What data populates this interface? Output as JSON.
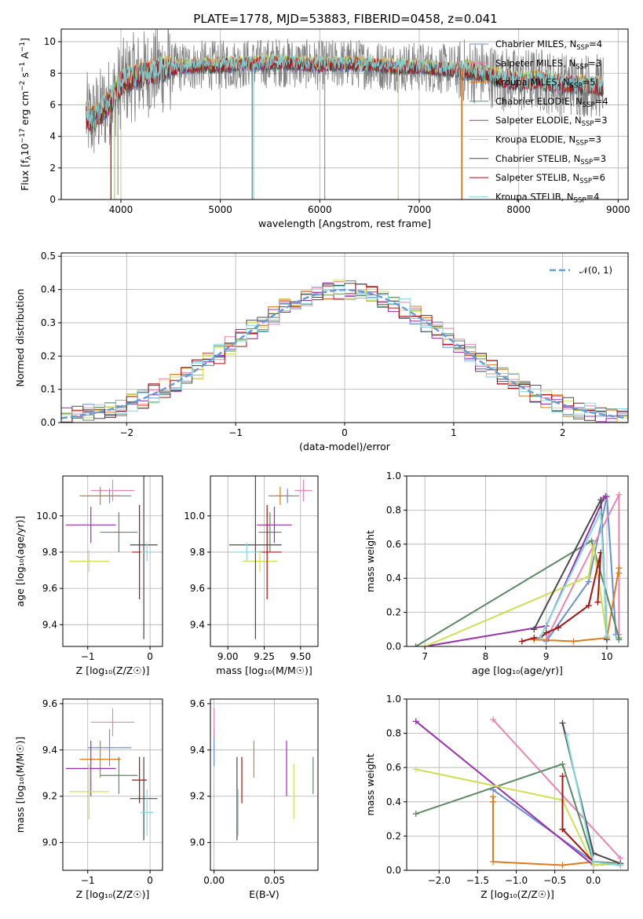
{
  "figure": {
    "title": "PLATE=1778, MJD=53883, FIBERID=0458, z=0.041"
  },
  "colors": {
    "observed_spectrum": "#808080",
    "gaussian": "#6699dd",
    "grid": "#b0b0b0"
  },
  "models": [
    {
      "id": "chabrier_miles",
      "label": "Chabrier MILES, N",
      "sub": "SSP",
      "eq": "=4",
      "color": "#6b8fd6"
    },
    {
      "id": "salpeter_miles",
      "label": "Salpeter MILES, N",
      "sub": "SSP",
      "eq": "=3",
      "color": "#e884b2"
    },
    {
      "id": "kroupa_miles",
      "label": "Kroupa MILES, N",
      "sub": "SSP",
      "eq": "=5",
      "color": "#e07a1f"
    },
    {
      "id": "chabrier_elodie",
      "label": "Chabrier ELODIE, N",
      "sub": "SSP",
      "eq": "=4",
      "color": "#5c8a64"
    },
    {
      "id": "salpeter_elodie",
      "label": "Salpeter ELODIE, N",
      "sub": "SSP",
      "eq": "=3",
      "color": "#9b2fb0"
    },
    {
      "id": "kroupa_elodie",
      "label": "Kroupa ELODIE, N",
      "sub": "SSP",
      "eq": "=3",
      "color": "#cfe04f"
    },
    {
      "id": "chabrier_stelib",
      "label": "Chabrier STELIB, N",
      "sub": "SSP",
      "eq": "=3",
      "color": "#4a4a4a"
    },
    {
      "id": "salpeter_stelib",
      "label": "Salpeter STELIB, N",
      "sub": "SSP",
      "eq": "=6",
      "color": "#aa1111"
    },
    {
      "id": "kroupa_stelib",
      "label": "Kroupa STELIB, N",
      "sub": "SSP",
      "eq": "=4",
      "color": "#7fdbe0"
    }
  ],
  "chart_data": [
    {
      "id": "spectrum",
      "type": "line",
      "xlabel": "wavelength [Angstrom, rest frame]",
      "ylabel_parts": [
        "Flux [f",
        "λ",
        "10",
        "−17",
        " erg cm",
        "−2",
        " s",
        "−1",
        " A",
        "−1",
        "]"
      ],
      "xlim": [
        3400,
        9100
      ],
      "ylim": [
        0,
        10.8
      ],
      "xticks": [
        4000,
        5000,
        6000,
        7000,
        8000,
        9000
      ],
      "yticks": [
        0,
        2,
        4,
        6,
        8,
        10
      ],
      "continuum": {
        "x": [
          3650,
          3700,
          3800,
          3900,
          3950,
          4000,
          4100,
          4200,
          4400,
          4600,
          4800,
          5000,
          5200,
          5400,
          5600,
          5800,
          6000,
          6200,
          6400,
          6600,
          6800,
          7000,
          7200,
          7400,
          7600,
          7800,
          8000,
          8200,
          8400,
          8600,
          8800
        ],
        "y": [
          5.3,
          5.0,
          5.6,
          6.3,
          6.8,
          7.3,
          7.7,
          7.9,
          8.2,
          8.4,
          8.5,
          8.5,
          8.6,
          8.6,
          8.7,
          8.6,
          8.5,
          8.6,
          8.6,
          8.5,
          8.4,
          8.4,
          8.3,
          8.2,
          8.1,
          7.7,
          7.5,
          7.6,
          7.3,
          7.3,
          7.2
        ]
      },
      "absorption_lines": [
        {
          "x": 3935,
          "min": 0
        },
        {
          "x": 3970,
          "min": 0.3
        },
        {
          "x": 3900,
          "min": 1.7
        },
        {
          "x": 5335,
          "min": 0
        },
        {
          "x": 6050,
          "min": 0
        },
        {
          "x": 6790,
          "min": 0
        },
        {
          "x": 7425,
          "min": 0
        }
      ]
    },
    {
      "id": "residuals",
      "type": "area",
      "xlabel": "(data-model)/error",
      "ylabel": "Normed distribution",
      "xlim": [
        -2.6,
        2.6
      ],
      "ylim": [
        0,
        0.51
      ],
      "xticks": [
        -2,
        -1,
        0,
        1,
        2
      ],
      "yticks": [
        0.0,
        0.1,
        0.2,
        0.3,
        0.4,
        0.5
      ],
      "legend": {
        "label": "𝒩(0, 1)",
        "position": "top-right"
      },
      "bin_width": 0.1
    },
    {
      "id": "age_vs_Z",
      "type": "scatter",
      "xlabel": "Z [log₁₀(Z/Z☉)]",
      "ylabel": "age  [log₁₀(age/yr)]",
      "xlim": [
        -1.4,
        0.2
      ],
      "ylim": [
        9.28,
        10.22
      ],
      "xticks": [
        -1,
        0
      ],
      "yticks": [
        9.4,
        9.6,
        9.8,
        10.0
      ],
      "points": [
        {
          "model": "chabrier_miles",
          "x": -0.65,
          "xerr": 0.35,
          "y": 10.11,
          "yerr": 0.04
        },
        {
          "model": "salpeter_miles",
          "x": -0.6,
          "xerr": 0.35,
          "y": 10.14,
          "yerr": 0.06
        },
        {
          "model": "kroupa_miles",
          "x": -0.8,
          "xerr": 0.33,
          "y": 10.11,
          "yerr": 0.05
        },
        {
          "model": "chabrier_elodie",
          "x": -0.5,
          "xerr": 0.3,
          "y": 9.91,
          "yerr": 0.11
        },
        {
          "model": "salpeter_elodie",
          "x": -0.95,
          "xerr": 0.4,
          "y": 9.95,
          "yerr": 0.1
        },
        {
          "model": "kroupa_elodie",
          "x": -0.98,
          "xerr": 0.32,
          "y": 9.75,
          "yerr": 0.06
        },
        {
          "model": "chabrier_stelib",
          "x": -0.1,
          "xerr": 0.22,
          "y": 9.84,
          "yerr": 0.52
        },
        {
          "model": "salpeter_stelib",
          "x": -0.17,
          "xerr": 0.12,
          "y": 9.8,
          "yerr": 0.26
        },
        {
          "model": "kroupa_stelib",
          "x": -0.05,
          "xerr": 0.1,
          "y": 9.8,
          "yerr": 0.05
        }
      ]
    },
    {
      "id": "age_vs_mass",
      "type": "scatter",
      "xlabel": "mass [log₁₀(M/M☉)]",
      "ylabel": "",
      "xlim": [
        8.88,
        9.62
      ],
      "ylim": [
        9.28,
        10.22
      ],
      "xticks": [
        9.0,
        9.25,
        9.5
      ],
      "yticks": [
        9.4,
        9.6,
        9.8,
        10.0
      ],
      "points": [
        {
          "model": "chabrier_miles",
          "x": 9.41,
          "xerr": 0.08,
          "y": 10.11,
          "yerr": 0.04
        },
        {
          "model": "salpeter_miles",
          "x": 9.52,
          "xerr": 0.06,
          "y": 10.14,
          "yerr": 0.06
        },
        {
          "model": "kroupa_miles",
          "x": 9.36,
          "xerr": 0.08,
          "y": 10.11,
          "yerr": 0.05
        },
        {
          "model": "chabrier_elodie",
          "x": 9.29,
          "xerr": 0.08,
          "y": 9.91,
          "yerr": 0.11
        },
        {
          "model": "salpeter_elodie",
          "x": 9.32,
          "xerr": 0.12,
          "y": 9.95,
          "yerr": 0.1
        },
        {
          "model": "kroupa_elodie",
          "x": 9.22,
          "xerr": 0.12,
          "y": 9.75,
          "yerr": 0.06
        },
        {
          "model": "chabrier_stelib",
          "x": 9.19,
          "xerr": 0.18,
          "y": 9.84,
          "yerr": 0.52
        },
        {
          "model": "salpeter_stelib",
          "x": 9.27,
          "xerr": 0.1,
          "y": 9.8,
          "yerr": 0.26
        },
        {
          "model": "kroupa_stelib",
          "x": 9.13,
          "xerr": 0.1,
          "y": 9.8,
          "yerr": 0.05
        }
      ]
    },
    {
      "id": "massweight_vs_age",
      "type": "line",
      "xlabel": "age  [log₁₀(age/yr)]",
      "ylabel": "mass weight",
      "xlim": [
        6.7,
        10.35
      ],
      "ylim": [
        0,
        1.0
      ],
      "xticks": [
        7,
        8,
        9,
        10
      ],
      "yticks": [
        0.0,
        0.2,
        0.4,
        0.6,
        0.8,
        1.0
      ],
      "series": [
        {
          "model": "chabrier_miles",
          "x": [
            9.0,
            9.7,
            10.0,
            10.15
          ],
          "y": [
            0.03,
            0.38,
            0.88,
            0.07
          ]
        },
        {
          "model": "salpeter_miles",
          "x": [
            9.0,
            10.2,
            10.2
          ],
          "y": [
            0.04,
            0.89,
            0.07
          ]
        },
        {
          "model": "kroupa_miles",
          "x": [
            8.8,
            9.45,
            10.0,
            10.2,
            10.2
          ],
          "y": [
            0.04,
            0.03,
            0.05,
            0.46,
            0.43
          ]
        },
        {
          "model": "chabrier_elodie",
          "x": [
            6.85,
            9.75,
            10.2,
            10.2
          ],
          "y": [
            0.0,
            0.62,
            0.05,
            0.04
          ]
        },
        {
          "model": "salpeter_elodie",
          "x": [
            7.0,
            9.0,
            9.95,
            9.98
          ],
          "y": [
            0.0,
            0.12,
            0.87,
            0.88
          ]
        },
        {
          "model": "kroupa_elodie",
          "x": [
            7.0,
            9.7,
            9.78,
            10.0
          ],
          "y": [
            0.0,
            0.41,
            0.59,
            0.06
          ]
        },
        {
          "model": "chabrier_stelib",
          "x": [
            8.8,
            9.9,
            10.0
          ],
          "y": [
            0.1,
            0.86,
            0.04
          ]
        },
        {
          "model": "salpeter_stelib",
          "x": [
            8.6,
            8.8,
            8.9,
            9.0,
            9.2,
            9.7,
            9.9,
            9.85
          ],
          "y": [
            0.03,
            0.05,
            0.05,
            0.08,
            0.11,
            0.24,
            0.55,
            0.26
          ]
        },
        {
          "model": "kroupa_stelib",
          "x": [
            8.9,
            9.9,
            10.0
          ],
          "y": [
            0.05,
            0.79,
            0.06
          ]
        }
      ]
    },
    {
      "id": "mass_vs_Z",
      "type": "scatter",
      "xlabel": "Z [log₁₀(Z/Z☉)]",
      "ylabel": "mass [log₁₀(M/M☉)]",
      "xlim": [
        -1.4,
        0.2
      ],
      "ylim": [
        8.88,
        9.62
      ],
      "xticks": [
        -1,
        0
      ],
      "yticks": [
        9.0,
        9.2,
        9.4,
        9.6
      ],
      "points": [
        {
          "model": "chabrier_miles",
          "x": -0.65,
          "xerr": 0.35,
          "y": 9.41,
          "yerr": 0.08
        },
        {
          "model": "salpeter_miles",
          "x": -0.6,
          "xerr": 0.35,
          "y": 9.52,
          "yerr": 0.06
        },
        {
          "model": "kroupa_miles",
          "x": -0.8,
          "xerr": 0.33,
          "y": 9.36,
          "yerr": 0.08
        },
        {
          "model": "chabrier_elodie",
          "x": -0.5,
          "xerr": 0.3,
          "y": 9.29,
          "yerr": 0.08
        },
        {
          "model": "salpeter_elodie",
          "x": -0.95,
          "xerr": 0.4,
          "y": 9.32,
          "yerr": 0.12
        },
        {
          "model": "kroupa_elodie",
          "x": -0.98,
          "xerr": 0.32,
          "y": 9.22,
          "yerr": 0.12
        },
        {
          "model": "chabrier_stelib",
          "x": -0.1,
          "xerr": 0.22,
          "y": 9.19,
          "yerr": 0.18
        },
        {
          "model": "salpeter_stelib",
          "x": -0.17,
          "xerr": 0.12,
          "y": 9.27,
          "yerr": 0.1
        },
        {
          "model": "kroupa_stelib",
          "x": -0.05,
          "xerr": 0.1,
          "y": 9.13,
          "yerr": 0.1
        }
      ]
    },
    {
      "id": "mass_vs_ebv",
      "type": "scatter",
      "xlabel": "E(B-V)",
      "ylabel": "",
      "xlim": [
        -0.003,
        0.086
      ],
      "ylim": [
        8.88,
        9.62
      ],
      "xticks": [
        0.0,
        0.05
      ],
      "xticklabels": [
        "0.00",
        "0.05"
      ],
      "yticks": [
        9.0,
        9.2,
        9.4,
        9.6
      ],
      "points": [
        {
          "model": "chabrier_miles",
          "x": 0.0,
          "y": 9.41,
          "yerr": 0.08
        },
        {
          "model": "salpeter_miles",
          "x": 0.0,
          "y": 9.52,
          "yerr": 0.06
        },
        {
          "model": "kroupa_miles",
          "x": 0.033,
          "y": 9.36,
          "yerr": 0.08
        },
        {
          "model": "chabrier_elodie",
          "x": 0.082,
          "y": 9.29,
          "yerr": 0.08
        },
        {
          "model": "salpeter_elodie",
          "x": 0.06,
          "y": 9.32,
          "yerr": 0.12
        },
        {
          "model": "kroupa_elodie",
          "x": 0.066,
          "y": 9.22,
          "yerr": 0.12
        },
        {
          "model": "chabrier_stelib",
          "x": 0.019,
          "y": 9.19,
          "yerr": 0.18
        },
        {
          "model": "salpeter_stelib",
          "x": 0.023,
          "y": 9.27,
          "yerr": 0.1
        },
        {
          "model": "kroupa_stelib",
          "x": 0.02,
          "y": 9.13,
          "yerr": 0.1
        }
      ]
    },
    {
      "id": "massweight_vs_Z",
      "type": "line",
      "xlabel": "Z [log₁₀(Z/Z☉)]",
      "ylabel": "mass weight",
      "xlim": [
        -2.42,
        0.45
      ],
      "ylim": [
        0,
        1.0
      ],
      "xticks": [
        -2.0,
        -1.5,
        -1.0,
        -0.5,
        0.0
      ],
      "xticklabels": [
        "−2.0",
        "−1.5",
        "−1.0",
        "−0.5",
        "0.0"
      ],
      "yticks": [
        0.0,
        0.2,
        0.4,
        0.6,
        0.8,
        1.0
      ],
      "series": [
        {
          "model": "chabrier_miles",
          "x": [
            -1.3,
            0.0,
            0.35
          ],
          "y": [
            0.47,
            0.05,
            0.04
          ]
        },
        {
          "model": "salpeter_miles",
          "x": [
            -1.3,
            0.35
          ],
          "y": [
            0.88,
            0.07
          ]
        },
        {
          "model": "kroupa_miles",
          "x": [
            -1.3,
            -1.3,
            -1.3,
            -0.4,
            0.0,
            0.35
          ],
          "y": [
            0.43,
            0.4,
            0.05,
            0.03,
            0.05,
            0.04
          ]
        },
        {
          "model": "chabrier_elodie",
          "x": [
            -2.3,
            -0.4,
            0.0,
            0.35
          ],
          "y": [
            0.33,
            0.62,
            0.05,
            0.04
          ]
        },
        {
          "model": "salpeter_elodie",
          "x": [
            -2.3,
            0.0,
            0.35
          ],
          "y": [
            0.87,
            0.03,
            0.04
          ]
        },
        {
          "model": "kroupa_elodie",
          "x": [
            -2.3,
            -0.4,
            0.0,
            0.35
          ],
          "y": [
            0.59,
            0.41,
            0.03,
            0.04
          ]
        },
        {
          "model": "chabrier_stelib",
          "x": [
            -0.4,
            0.0,
            0.35
          ],
          "y": [
            0.86,
            0.1,
            0.04
          ]
        },
        {
          "model": "salpeter_stelib",
          "x": [
            -0.4,
            -0.4,
            -0.4,
            0.0,
            0.35
          ],
          "y": [
            0.55,
            0.24,
            0.24,
            0.05,
            0.03
          ]
        },
        {
          "model": "kroupa_stelib",
          "x": [
            -0.35,
            0.0,
            0.35
          ],
          "y": [
            0.79,
            0.05,
            0.03
          ]
        }
      ]
    }
  ]
}
